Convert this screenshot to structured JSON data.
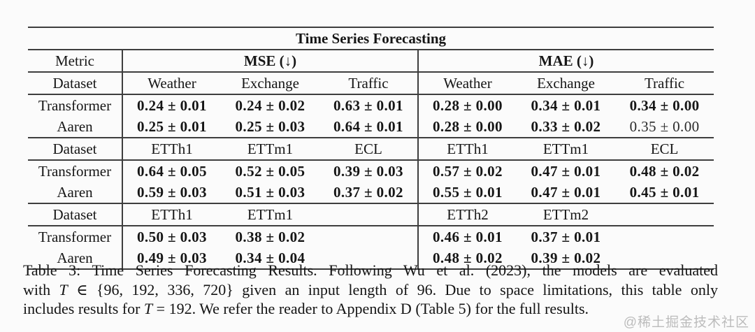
{
  "table": {
    "title": "Time Series Forecasting",
    "header": {
      "metric": "Metric",
      "mse": "MSE (↓)",
      "mae": "MAE (↓)"
    },
    "blocks": [
      {
        "dataset_label": "Dataset",
        "mse_datasets": [
          "Weather",
          "Exchange",
          "Traffic"
        ],
        "mae_datasets": [
          "Weather",
          "Exchange",
          "Traffic"
        ],
        "rows": [
          {
            "model": "Transformer",
            "mse": [
              "0.24 ± 0.01",
              "0.24 ± 0.02",
              "0.63 ± 0.01"
            ],
            "mae": [
              "0.28 ± 0.00",
              "0.34 ± 0.01",
              "0.34 ± 0.00"
            ]
          },
          {
            "model": "Aaren",
            "mse": [
              "0.25 ± 0.01",
              "0.25 ± 0.03",
              "0.64 ± 0.01"
            ],
            "mae": [
              "0.28 ± 0.00",
              "0.33 ± 0.02",
              "0.35 ± 0.00"
            ]
          }
        ]
      },
      {
        "dataset_label": "Dataset",
        "mse_datasets": [
          "ETTh1",
          "ETTm1",
          "ECL"
        ],
        "mae_datasets": [
          "ETTh1",
          "ETTm1",
          "ECL"
        ],
        "rows": [
          {
            "model": "Transformer",
            "mse": [
              "0.64 ± 0.05",
              "0.52 ± 0.05",
              "0.39 ± 0.03"
            ],
            "mae": [
              "0.57 ± 0.02",
              "0.47 ± 0.01",
              "0.48 ± 0.02"
            ]
          },
          {
            "model": "Aaren",
            "mse": [
              "0.59 ± 0.03",
              "0.51 ± 0.03",
              "0.37 ± 0.02"
            ],
            "mae": [
              "0.55 ± 0.01",
              "0.47 ± 0.01",
              "0.45 ± 0.01"
            ]
          }
        ]
      },
      {
        "dataset_label": "Dataset",
        "mse_datasets": [
          "ETTh1",
          "ETTm1",
          ""
        ],
        "mae_datasets": [
          "ETTh2",
          "ETTm2",
          ""
        ],
        "rows": [
          {
            "model": "Transformer",
            "mse": [
              "0.50 ± 0.03",
              "0.38 ± 0.02",
              ""
            ],
            "mae": [
              "0.46 ± 0.01",
              "0.37 ± 0.01",
              ""
            ]
          },
          {
            "model": "Aaren",
            "mse": [
              "0.49 ± 0.03",
              "0.34 ± 0.04",
              ""
            ],
            "mae": [
              "0.48 ± 0.02",
              "0.39 ± 0.02",
              ""
            ]
          }
        ]
      }
    ]
  },
  "caption": {
    "lines": [
      [
        {
          "t": "Table 3: Time Series Forecasting Results. Following Wu et al. (2023), the models are evaluated"
        }
      ],
      [
        {
          "t": "with "
        },
        {
          "t": "T",
          "i": true
        },
        {
          "t": " ∈ {96, 192, 336, 720} given an input length of 96. Due to space limitations, this table only"
        }
      ],
      [
        {
          "t": "includes results for "
        },
        {
          "t": "T",
          "i": true
        },
        {
          "t": " = 192. We refer the reader to Appendix D (Table 5) for the full results."
        }
      ]
    ]
  },
  "watermark": "@稀土掘金技术社区"
}
